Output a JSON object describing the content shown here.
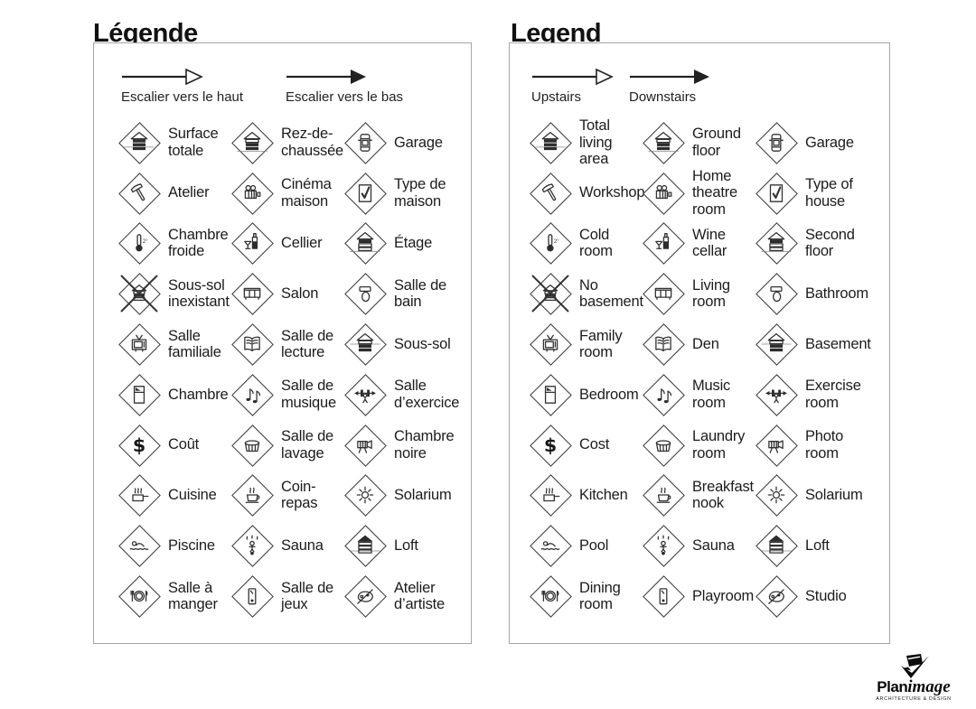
{
  "page": {
    "background": "#ffffff"
  },
  "colors": {
    "text": "#1c1c1c",
    "icon_stroke": "#333333",
    "icon_fill": "#2c2c2c",
    "panel_border": "#a6a6a6",
    "arrow": "#222222"
  },
  "panels": [
    {
      "id": "french",
      "title": "Légende",
      "arrows": [
        {
          "icon": "stairs-up-arrow-icon",
          "style": "outline",
          "label": "Escalier vers le haut"
        },
        {
          "icon": "stairs-down-arrow-icon",
          "style": "filled",
          "label": "Escalier vers le bas"
        }
      ],
      "items": [
        {
          "icon": "total-living-area-icon",
          "label": "Surface totale"
        },
        {
          "icon": "ground-floor-icon",
          "label": "Rez-de-chaussée"
        },
        {
          "icon": "garage-icon",
          "label": "Garage"
        },
        {
          "icon": "workshop-icon",
          "label": "Atelier"
        },
        {
          "icon": "home-theatre-icon",
          "label": "Cinéma maison"
        },
        {
          "icon": "type-of-house-icon",
          "label": "Type de maison"
        },
        {
          "icon": "cold-room-icon",
          "label": "Chambre froide"
        },
        {
          "icon": "wine-cellar-icon",
          "label": "Cellier"
        },
        {
          "icon": "second-floor-icon",
          "label": "Étage"
        },
        {
          "icon": "no-basement-icon",
          "label": "Sous-sol inexistant"
        },
        {
          "icon": "living-room-icon",
          "label": "Salon"
        },
        {
          "icon": "bathroom-icon",
          "label": "Salle de bain"
        },
        {
          "icon": "family-room-icon",
          "label": "Salle familiale"
        },
        {
          "icon": "den-icon",
          "label": "Salle de lecture"
        },
        {
          "icon": "basement-icon",
          "label": "Sous-sol"
        },
        {
          "icon": "bedroom-icon",
          "label": "Chambre"
        },
        {
          "icon": "music-room-icon",
          "label": "Salle de musique"
        },
        {
          "icon": "exercise-room-icon",
          "label": "Salle d’exercice"
        },
        {
          "icon": "cost-icon",
          "label": "Coût"
        },
        {
          "icon": "laundry-room-icon",
          "label": "Salle de lavage"
        },
        {
          "icon": "photo-room-icon",
          "label": "Chambre noire"
        },
        {
          "icon": "kitchen-icon",
          "label": "Cuisine"
        },
        {
          "icon": "breakfast-nook-icon",
          "label": "Coin-repas"
        },
        {
          "icon": "solarium-icon",
          "label": "Solarium"
        },
        {
          "icon": "pool-icon",
          "label": "Piscine"
        },
        {
          "icon": "sauna-icon",
          "label": "Sauna"
        },
        {
          "icon": "loft-icon",
          "label": "Loft"
        },
        {
          "icon": "dining-room-icon",
          "label": "Salle à manger"
        },
        {
          "icon": "playroom-icon",
          "label": "Salle de jeux"
        },
        {
          "icon": "studio-icon",
          "label": "Atelier d’artiste"
        }
      ]
    },
    {
      "id": "english",
      "title": "Legend",
      "arrows": [
        {
          "icon": "stairs-up-arrow-icon",
          "style": "outline",
          "label": "Upstairs"
        },
        {
          "icon": "stairs-down-arrow-icon",
          "style": "filled",
          "label": "Downstairs"
        }
      ],
      "items": [
        {
          "icon": "total-living-area-icon",
          "label": "Total living area"
        },
        {
          "icon": "ground-floor-icon",
          "label": "Ground floor"
        },
        {
          "icon": "garage-icon",
          "label": "Garage"
        },
        {
          "icon": "workshop-icon",
          "label": "Workshop"
        },
        {
          "icon": "home-theatre-icon",
          "label": "Home theatre room"
        },
        {
          "icon": "type-of-house-icon",
          "label": "Type of house"
        },
        {
          "icon": "cold-room-icon",
          "label": "Cold room"
        },
        {
          "icon": "wine-cellar-icon",
          "label": "Wine cellar"
        },
        {
          "icon": "second-floor-icon",
          "label": "Second floor"
        },
        {
          "icon": "no-basement-icon",
          "label": "No basement"
        },
        {
          "icon": "living-room-icon",
          "label": "Living room"
        },
        {
          "icon": "bathroom-icon",
          "label": "Bathroom"
        },
        {
          "icon": "family-room-icon",
          "label": "Family room"
        },
        {
          "icon": "den-icon",
          "label": "Den"
        },
        {
          "icon": "basement-icon",
          "label": "Basement"
        },
        {
          "icon": "bedroom-icon",
          "label": "Bedroom"
        },
        {
          "icon": "music-room-icon",
          "label": "Music room"
        },
        {
          "icon": "exercise-room-icon",
          "label": "Exercise room"
        },
        {
          "icon": "cost-icon",
          "label": "Cost"
        },
        {
          "icon": "laundry-room-icon",
          "label": "Laundry room"
        },
        {
          "icon": "photo-room-icon",
          "label": "Photo room"
        },
        {
          "icon": "kitchen-icon",
          "label": "Kitchen"
        },
        {
          "icon": "breakfast-nook-icon",
          "label": "Breakfast nook"
        },
        {
          "icon": "solarium-icon",
          "label": "Solarium"
        },
        {
          "icon": "pool-icon",
          "label": "Pool"
        },
        {
          "icon": "sauna-icon",
          "label": "Sauna"
        },
        {
          "icon": "loft-icon",
          "label": "Loft"
        },
        {
          "icon": "dining-room-icon",
          "label": "Dining room"
        },
        {
          "icon": "playroom-icon",
          "label": "Playroom"
        },
        {
          "icon": "studio-icon",
          "label": "Studio"
        }
      ]
    }
  ],
  "logo": {
    "name_bold": "Plan",
    "name_italic": "image",
    "tagline": "ARCHITECTURE & DESIGN"
  }
}
